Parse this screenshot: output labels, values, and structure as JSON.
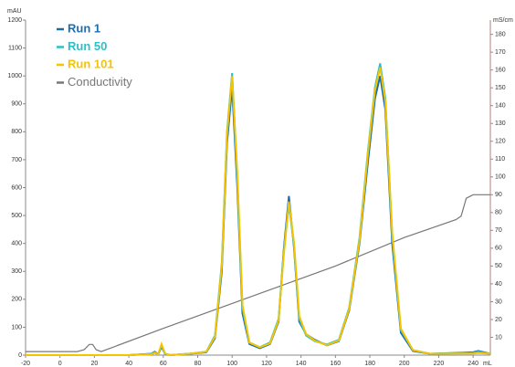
{
  "chart_data": {
    "type": "line",
    "y_label": "mAU",
    "y2_label": "mS/cm",
    "x_label": "mL",
    "xlim": [
      -20,
      250
    ],
    "xticks": [
      -20,
      0,
      20,
      40,
      60,
      80,
      100,
      120,
      140,
      160,
      180,
      200,
      220,
      240
    ],
    "ylim": [
      0,
      1200
    ],
    "yticks": [
      0,
      100,
      200,
      300,
      400,
      500,
      600,
      700,
      800,
      900,
      1000,
      1100,
      1200
    ],
    "y2lim": [
      0,
      188
    ],
    "y2ticks": [
      10,
      20,
      30,
      40,
      50,
      60,
      70,
      80,
      90,
      100,
      110,
      120,
      130,
      140,
      150,
      160,
      170,
      180
    ],
    "legend": "top-left",
    "series": [
      {
        "name": "Run 1",
        "color": "#1a6fb0",
        "x": [
          -20,
          10,
          40,
          53,
          55,
          57,
          59,
          61,
          64,
          75,
          85,
          90,
          94,
          97,
          100,
          103,
          106,
          110,
          116,
          122,
          127,
          130,
          133,
          136,
          139,
          143,
          148,
          155,
          162,
          168,
          174,
          179,
          183,
          186,
          189,
          193,
          198,
          205,
          215,
          240,
          243,
          250
        ],
        "values": [
          0,
          0,
          0,
          5,
          12,
          3,
          30,
          5,
          0,
          5,
          10,
          60,
          300,
          760,
          960,
          600,
          150,
          40,
          25,
          40,
          120,
          380,
          570,
          380,
          120,
          75,
          55,
          35,
          50,
          160,
          400,
          700,
          920,
          1000,
          880,
          400,
          80,
          15,
          5,
          10,
          15,
          5
        ]
      },
      {
        "name": "Run 50",
        "color": "#2cc0c9",
        "x": [
          -20,
          10,
          40,
          53,
          55,
          57,
          59,
          61,
          64,
          75,
          85,
          90,
          94,
          97,
          100,
          103,
          106,
          110,
          116,
          122,
          127,
          130,
          133,
          136,
          139,
          143,
          148,
          155,
          162,
          168,
          174,
          179,
          183,
          186,
          189,
          193,
          198,
          205,
          215,
          240,
          243,
          250
        ],
        "values": [
          0,
          0,
          0,
          4,
          10,
          3,
          35,
          5,
          0,
          5,
          12,
          70,
          330,
          800,
          1010,
          640,
          170,
          45,
          28,
          45,
          130,
          370,
          540,
          390,
          130,
          70,
          50,
          38,
          55,
          170,
          420,
          740,
          960,
          1045,
          920,
          430,
          90,
          18,
          5,
          8,
          12,
          5
        ]
      },
      {
        "name": "Run 101",
        "color": "#f5c400",
        "x": [
          -20,
          10,
          40,
          53,
          55,
          57,
          59,
          61,
          64,
          75,
          85,
          90,
          94,
          97,
          100,
          103,
          106,
          110,
          116,
          122,
          127,
          130,
          133,
          136,
          139,
          143,
          148,
          155,
          162,
          168,
          174,
          179,
          183,
          186,
          189,
          193,
          198,
          205,
          215,
          240,
          243,
          250
        ],
        "values": [
          0,
          0,
          0,
          3,
          8,
          3,
          40,
          6,
          0,
          5,
          12,
          65,
          320,
          790,
          1000,
          650,
          180,
          45,
          28,
          42,
          125,
          360,
          550,
          400,
          140,
          75,
          52,
          36,
          52,
          165,
          410,
          730,
          950,
          1030,
          910,
          440,
          95,
          18,
          5,
          6,
          8,
          5
        ]
      },
      {
        "name": "Conductivity",
        "color": "#777777",
        "axis": "y2",
        "x": [
          -20,
          10,
          14,
          17,
          19,
          21,
          24,
          60,
          100,
          160,
          200,
          230,
          233,
          236,
          240,
          250
        ],
        "values": [
          2,
          2,
          3,
          6,
          6,
          3,
          2,
          15,
          29,
          50,
          66,
          76,
          78,
          88,
          90,
          90
        ]
      }
    ]
  }
}
